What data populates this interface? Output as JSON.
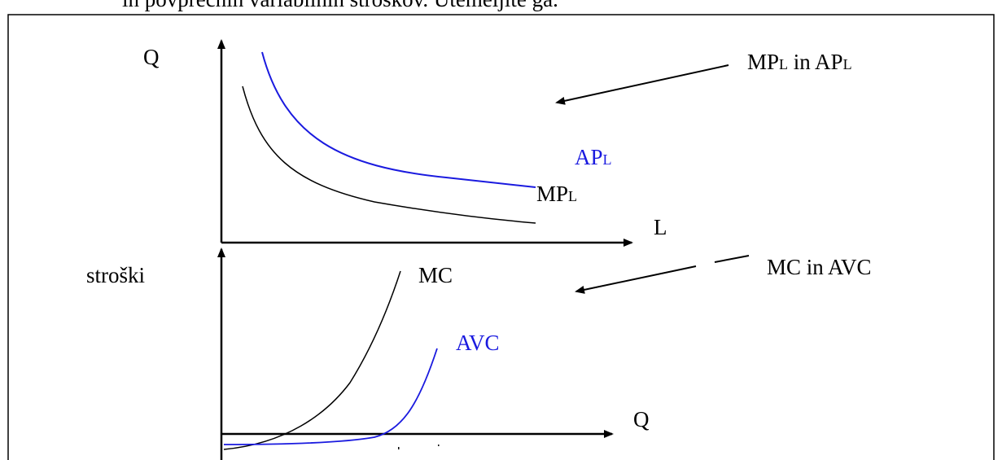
{
  "header_text": "in povprečnih variabilnih stroškov. Utemeljite ga.",
  "top_panel": {
    "y_axis_label": "Q",
    "x_axis_label": "L",
    "callout_main": "MP",
    "callout_sub1": "L",
    "callout_mid": " in AP",
    "callout_sub2": "L",
    "apl_main": "AP",
    "apl_sub": "L",
    "mpl_main": "MP",
    "mpl_sub": "L"
  },
  "bottom_panel": {
    "y_axis_label": "stroški",
    "x_axis_label": "Q",
    "callout": "MC in AVC",
    "mc_label": "MC",
    "avc_label": "AVC"
  },
  "colors": {
    "blue_curve": "#1a1adf",
    "black": "#000000"
  }
}
